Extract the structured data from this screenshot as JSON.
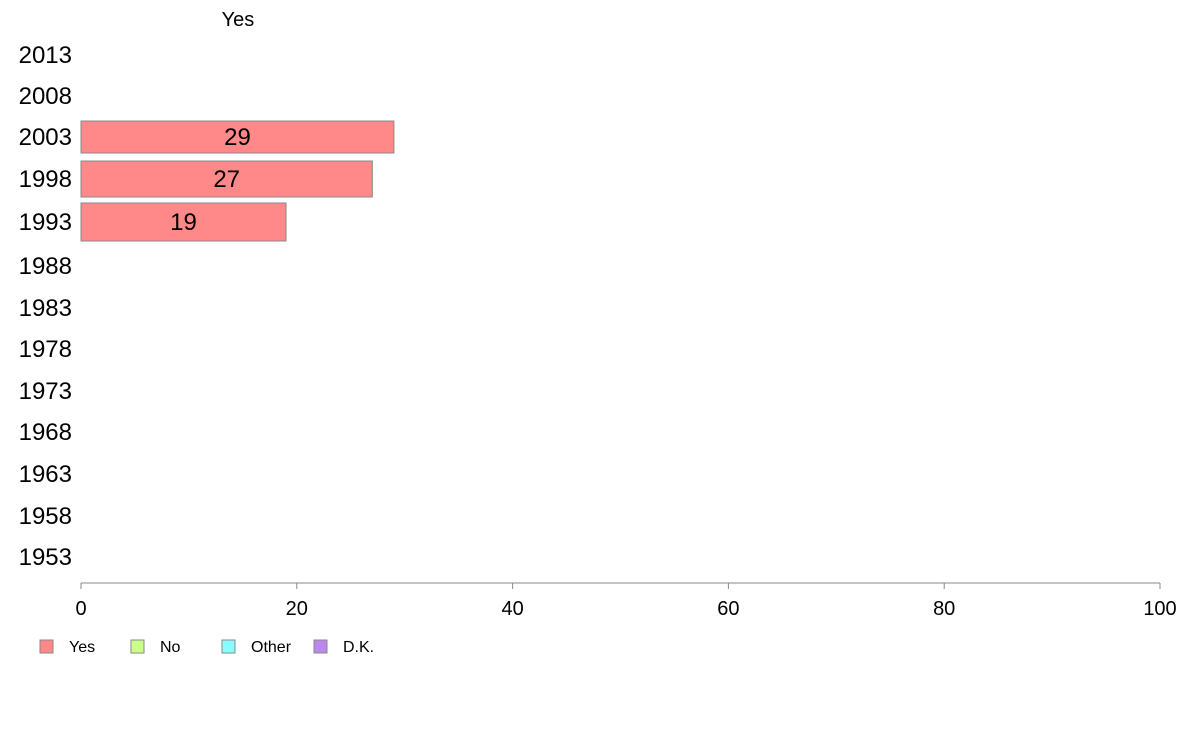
{
  "chart_data": {
    "type": "bar",
    "orientation": "horizontal",
    "title": "Yes",
    "categories": [
      "2013",
      "2008",
      "2003",
      "1998",
      "1993",
      "1988",
      "1983",
      "1978",
      "1973",
      "1968",
      "1963",
      "1958",
      "1953"
    ],
    "series": [
      {
        "name": "Yes",
        "color": "#ff8888",
        "values": [
          null,
          null,
          29,
          27,
          19,
          null,
          null,
          null,
          null,
          null,
          null,
          null,
          null
        ],
        "labels": [
          "",
          "",
          "29",
          "27",
          "19",
          "",
          "",
          "",
          "",
          "",
          "",
          "",
          ""
        ]
      }
    ],
    "xlim": [
      0,
      100
    ],
    "xticks": [
      0,
      20,
      40,
      60,
      80,
      100
    ],
    "xtick_labels": [
      "0",
      "20",
      "40",
      "60",
      "80",
      "100"
    ],
    "grid": false,
    "legend_position": "bottom-left",
    "legend": [
      {
        "label": "Yes",
        "color": "#ff8888"
      },
      {
        "label": "No",
        "color": "#ccff88"
      },
      {
        "label": "Other",
        "color": "#88ffff"
      },
      {
        "label": "D.K.",
        "color": "#bb88ee"
      }
    ]
  }
}
